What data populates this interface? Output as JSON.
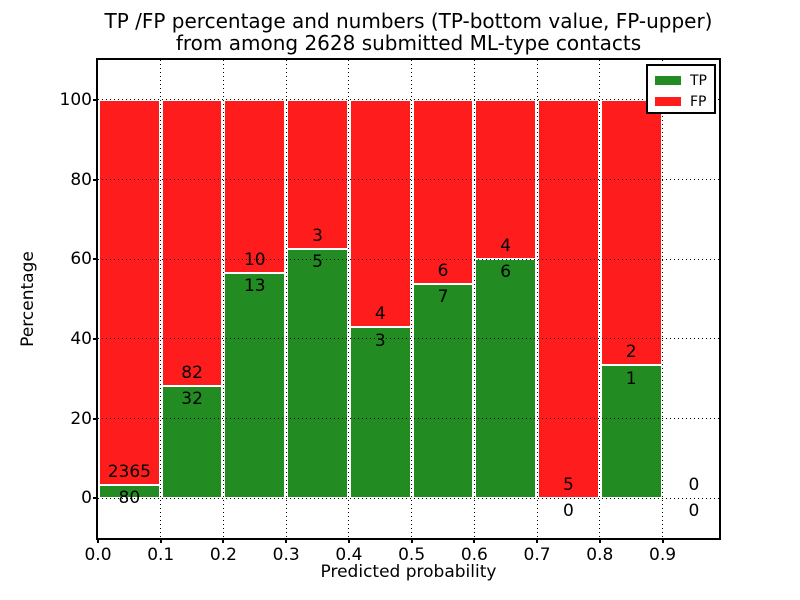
{
  "chart_data": {
    "type": "bar",
    "subtype": "stacked-percentage-histogram",
    "title_line1": "TP /FP percentage and numbers (TP-bottom value, FP-upper)",
    "title_line2": "from among 2628 submitted ML-type contacts",
    "xlabel": "Predicted probability",
    "ylabel": "Percentage",
    "x_tick_labels": [
      "0.0",
      "0.1",
      "0.2",
      "0.3",
      "0.4",
      "0.5",
      "0.6",
      "0.7",
      "0.8",
      "0.9"
    ],
    "x_tick_values": [
      0.0,
      0.1,
      0.2,
      0.3,
      0.4,
      0.5,
      0.6,
      0.7,
      0.8,
      0.9
    ],
    "y_tick_values": [
      0,
      20,
      40,
      60,
      80,
      100
    ],
    "xlim": [
      0.0,
      0.99
    ],
    "ylim": [
      -10,
      110
    ],
    "grid": "dotted, drawn above bars",
    "legend_position": "upper right",
    "legend": [
      {
        "label": "TP",
        "color": "#228b22"
      },
      {
        "label": "FP",
        "color": "#ff1c1c"
      }
    ],
    "colors": {
      "tp": "#228b22",
      "fp": "#ff1c1c",
      "bar_edge": "#ffffff",
      "grid": "#000000",
      "text": "#000000",
      "background": "#ffffff"
    },
    "total_contacts": 2628,
    "bins": [
      {
        "range": "0.0-0.1",
        "tp": 80,
        "fp": 2365
      },
      {
        "range": "0.1-0.2",
        "tp": 32,
        "fp": 82
      },
      {
        "range": "0.2-0.3",
        "tp": 13,
        "fp": 10
      },
      {
        "range": "0.3-0.4",
        "tp": 5,
        "fp": 3
      },
      {
        "range": "0.4-0.5",
        "tp": 3,
        "fp": 4
      },
      {
        "range": "0.5-0.6",
        "tp": 7,
        "fp": 6
      },
      {
        "range": "0.6-0.7",
        "tp": 6,
        "fp": 4
      },
      {
        "range": "0.7-0.8",
        "tp": 0,
        "fp": 5
      },
      {
        "range": "0.8-0.9",
        "tp": 1,
        "fp": 2
      },
      {
        "range": "0.9-1.0",
        "tp": 0,
        "fp": 0
      }
    ]
  }
}
